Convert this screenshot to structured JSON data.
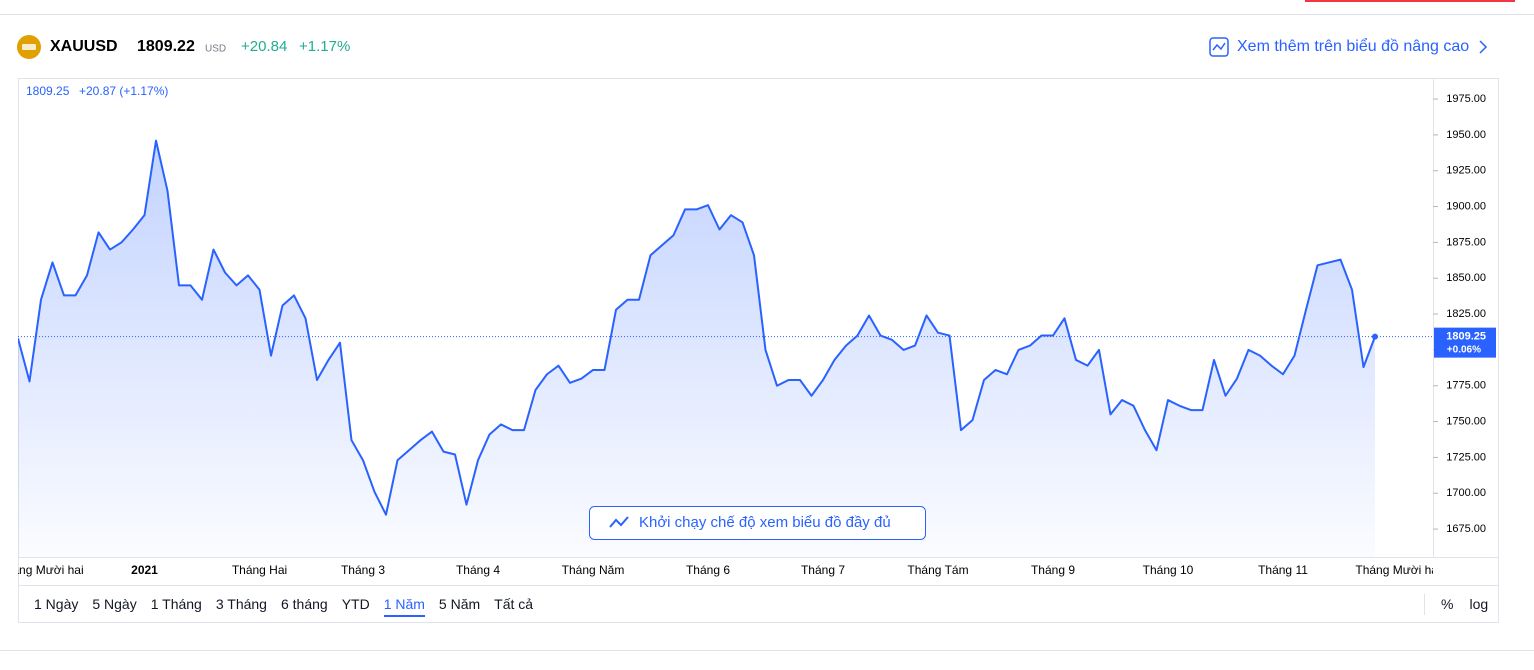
{
  "header": {
    "symbol": "XAUUSD",
    "price": "1809.22",
    "currency": "USD",
    "change": "+20.84",
    "change_pct": "+1.17%",
    "link": "Xem thêm trên biểu đồ nâng cao"
  },
  "chart_data": {
    "type": "line",
    "legend_price": "1809.25",
    "legend_change": "+20.87 (+1.17%)",
    "categories": [
      null,
      null,
      "Tháng Mười hai",
      null,
      null,
      null,
      null,
      null,
      null,
      null,
      null,
      "2021",
      null,
      null,
      null,
      null,
      null,
      null,
      null,
      null,
      null,
      "Tháng Hai",
      null,
      null,
      null,
      null,
      null,
      null,
      null,
      null,
      "Tháng 3",
      null,
      null,
      null,
      null,
      null,
      null,
      null,
      null,
      null,
      "Tháng 4",
      null,
      null,
      null,
      null,
      null,
      null,
      null,
      null,
      null,
      "Tháng Năm",
      null,
      null,
      null,
      null,
      null,
      null,
      null,
      null,
      null,
      "Tháng 6",
      null,
      null,
      null,
      null,
      null,
      null,
      null,
      null,
      null,
      "Tháng 7",
      null,
      null,
      null,
      null,
      null,
      null,
      null,
      null,
      null,
      "Tháng Tám",
      null,
      null,
      null,
      null,
      null,
      null,
      null,
      null,
      null,
      "Tháng 9",
      null,
      null,
      null,
      null,
      null,
      null,
      null,
      null,
      null,
      "Tháng 10",
      null,
      null,
      null,
      null,
      null,
      null,
      null,
      null,
      null,
      "Tháng 11",
      null,
      null,
      null,
      null,
      null,
      null,
      null,
      null,
      null,
      "Tháng Mười hai"
    ],
    "values": [
      1808,
      1778,
      1835,
      1861,
      1838,
      1838,
      1852,
      1882,
      1870,
      1875,
      1884,
      1894,
      1946,
      1911,
      1845,
      1845,
      1835,
      1870,
      1854,
      1845,
      1852,
      1842,
      1796,
      1831,
      1838,
      1822,
      1779,
      1793,
      1805,
      1737,
      1723,
      1701,
      1685,
      1723,
      1730,
      1737,
      1743,
      1729,
      1727,
      1692,
      1723,
      1741,
      1748,
      1744,
      1744,
      1772,
      1783,
      1789,
      1777,
      1780,
      1786,
      1786,
      1828,
      1835,
      1835,
      1866,
      1873,
      1880,
      1898,
      1898,
      1901,
      1884,
      1894,
      1889,
      1866,
      1800,
      1775,
      1779,
      1779,
      1768,
      1779,
      1793,
      1803,
      1810,
      1824,
      1810,
      1807,
      1800,
      1803,
      1824,
      1812,
      1810,
      1744,
      1751,
      1779,
      1786,
      1783,
      1800,
      1803,
      1810,
      1810,
      1822,
      1793,
      1789,
      1800,
      1755,
      1765,
      1761,
      1744,
      1730,
      1765,
      1761,
      1758,
      1758,
      1793,
      1768,
      1780,
      1800,
      1796,
      1789,
      1783,
      1796,
      1828,
      1859,
      1861,
      1863,
      1842,
      1788,
      1809.25,
      null,
      null
    ],
    "color": "#2962ff",
    "log": false,
    "ylim": [
      1655.5,
      1989
    ],
    "yticks": [
      {
        "value": 1675,
        "label": "1675.00"
      },
      {
        "value": 1700,
        "label": "1700.00"
      },
      {
        "value": 1725,
        "label": "1725.00"
      },
      {
        "value": 1750,
        "label": "1750.00"
      },
      {
        "value": 1775,
        "label": "1775.00"
      },
      {
        "value": 1800,
        "label": "1800.00"
      },
      {
        "value": 1825,
        "label": "1825.00"
      },
      {
        "value": 1850,
        "label": "1850.00"
      },
      {
        "value": 1875,
        "label": "1875.00"
      },
      {
        "value": 1900,
        "label": "1900.00"
      },
      {
        "value": 1925,
        "label": "1925.00"
      },
      {
        "value": 1950,
        "label": "1950.00"
      },
      {
        "value": 1975,
        "label": "1975.00"
      }
    ],
    "last_price": {
      "value": 1809.25,
      "label": "1809.25"
    },
    "last_change": "+0.06%"
  },
  "overlay_button": "Khởi chạy chế độ xem biểu đồ đầy đủ",
  "toolbar": {
    "ranges": [
      "1 Ngày",
      "5 Ngày",
      "1 Tháng",
      "3 Tháng",
      "6 tháng",
      "YTD",
      "1 Năm",
      "5 Năm",
      "Tất cả"
    ],
    "active": 6,
    "toggles": [
      "%",
      "log"
    ]
  }
}
